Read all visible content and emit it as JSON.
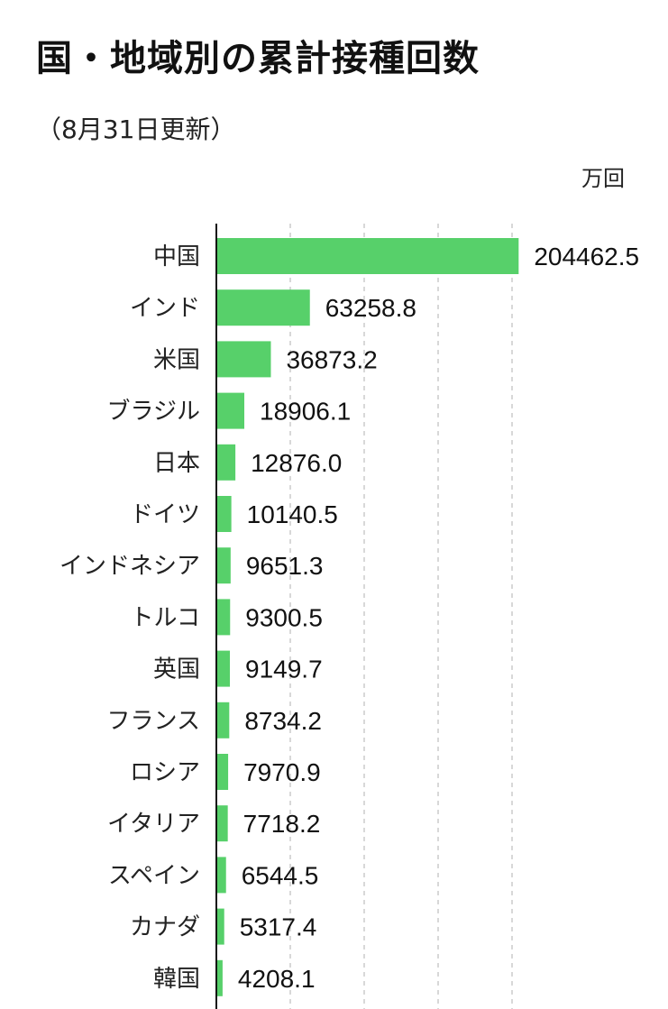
{
  "title": "国・地域別の累計接種回数",
  "subtitle": "（8月31日更新）",
  "unit": "万回",
  "colors": {
    "bar": "#57d06a",
    "axis": "#111111",
    "grid": "#cccccc"
  },
  "chart_data": {
    "type": "bar",
    "orientation": "horizontal",
    "categories": [
      "中国",
      "インド",
      "米国",
      "ブラジル",
      "日本",
      "ドイツ",
      "インドネシア",
      "トルコ",
      "英国",
      "フランス",
      "ロシア",
      "イタリア",
      "スペイン",
      "カナダ",
      "韓国"
    ],
    "values": [
      204462.5,
      63258.8,
      36873.2,
      18906.1,
      12876.0,
      10140.5,
      9651.3,
      9300.5,
      9149.7,
      8734.2,
      7970.9,
      7718.2,
      6544.5,
      5317.4,
      4208.1
    ],
    "value_labels": [
      "204462.5",
      "63258.8",
      "36873.2",
      "18906.1",
      "12876.0",
      "10140.5",
      "9651.3",
      "9300.5",
      "9149.7",
      "8734.2",
      "7970.9",
      "7718.2",
      "6544.5",
      "5317.4",
      "4208.1"
    ],
    "xlim": [
      0,
      200000
    ],
    "grid": true,
    "grid_style": "dashed vertical"
  }
}
